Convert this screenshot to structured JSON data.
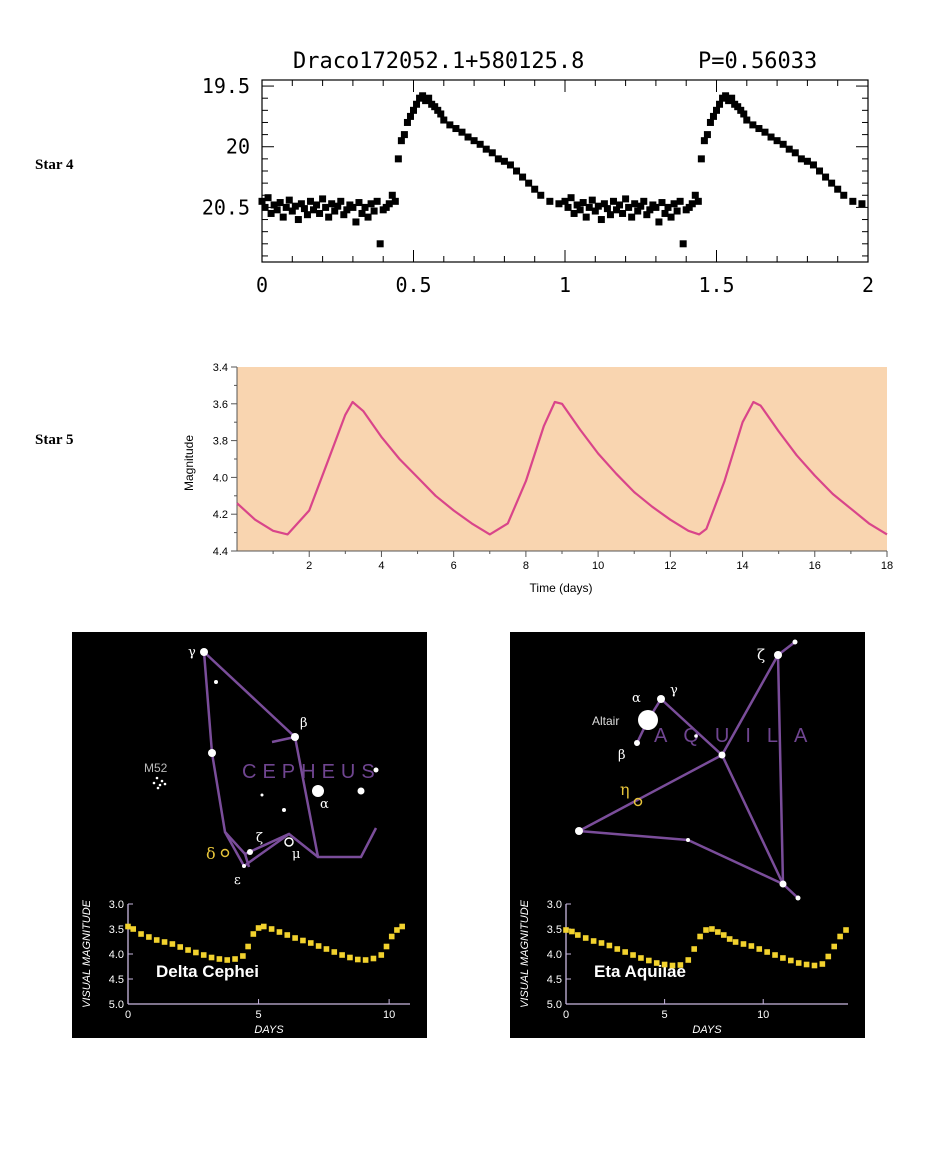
{
  "labels": {
    "star4": "Star 4",
    "star5": "Star 5"
  },
  "chart_data": [
    {
      "type": "scatter",
      "title": "Draco172052.1+580125.8",
      "period_label": "P=0.56033",
      "xlim": [
        0,
        2
      ],
      "ylim": [
        20.95,
        19.45
      ],
      "y_inverted": true,
      "xticks": [
        "0",
        "0.5",
        "1",
        "1.5",
        "2"
      ],
      "yticks": [
        "19.5",
        "20",
        "20.5"
      ],
      "marker_color": "#000000",
      "series": [
        {
          "x": [
            0.0,
            0.01,
            0.02,
            0.03,
            0.04,
            0.05,
            0.06,
            0.07,
            0.08,
            0.09,
            0.1,
            0.11,
            0.12,
            0.13,
            0.14,
            0.15,
            0.16,
            0.17,
            0.18,
            0.19,
            0.2,
            0.21,
            0.22,
            0.23,
            0.24,
            0.25,
            0.26,
            0.27,
            0.28,
            0.29,
            0.3,
            0.31,
            0.32,
            0.33,
            0.34,
            0.35,
            0.36,
            0.37,
            0.38,
            0.39,
            0.4,
            0.41,
            0.42,
            0.43,
            0.44,
            0.45,
            0.46,
            0.47,
            0.48,
            0.49,
            0.5,
            0.51,
            0.52,
            0.53,
            0.54,
            0.55,
            0.56,
            0.57,
            0.58,
            0.59,
            0.6,
            0.62,
            0.64,
            0.66,
            0.68,
            0.7,
            0.72,
            0.74,
            0.76,
            0.78,
            0.8,
            0.82,
            0.84,
            0.86,
            0.88,
            0.9,
            0.92,
            0.95,
            0.98,
            1.0,
            1.01,
            1.02,
            1.03,
            1.04,
            1.05,
            1.06,
            1.07,
            1.08,
            1.09,
            1.1,
            1.11,
            1.12,
            1.13,
            1.14,
            1.15,
            1.16,
            1.17,
            1.18,
            1.19,
            1.2,
            1.21,
            1.22,
            1.23,
            1.24,
            1.25,
            1.26,
            1.27,
            1.28,
            1.29,
            1.3,
            1.31,
            1.32,
            1.33,
            1.34,
            1.35,
            1.36,
            1.37,
            1.38,
            1.39,
            1.4,
            1.41,
            1.42,
            1.43,
            1.44,
            1.45,
            1.46,
            1.47,
            1.48,
            1.49,
            1.5,
            1.51,
            1.52,
            1.53,
            1.54,
            1.55,
            1.56,
            1.57,
            1.58,
            1.59,
            1.6,
            1.62,
            1.64,
            1.66,
            1.68,
            1.7,
            1.72,
            1.74,
            1.76,
            1.78,
            1.8,
            1.82,
            1.84,
            1.86,
            1.88,
            1.9,
            1.92,
            1.95,
            1.98
          ],
          "y": [
            20.45,
            20.5,
            20.42,
            20.55,
            20.48,
            20.52,
            20.46,
            20.58,
            20.5,
            20.44,
            20.53,
            20.49,
            20.6,
            20.47,
            20.51,
            20.56,
            20.45,
            20.52,
            20.48,
            20.55,
            20.43,
            20.5,
            20.58,
            20.47,
            20.53,
            20.49,
            20.45,
            20.56,
            20.52,
            20.48,
            20.5,
            20.62,
            20.46,
            20.55,
            20.5,
            20.58,
            20.47,
            20.53,
            20.45,
            20.8,
            20.52,
            20.5,
            20.47,
            20.4,
            20.45,
            20.1,
            19.95,
            19.9,
            19.8,
            19.75,
            19.7,
            19.65,
            19.6,
            19.58,
            19.62,
            19.6,
            19.65,
            19.67,
            19.7,
            19.73,
            19.78,
            19.82,
            19.85,
            19.88,
            19.92,
            19.95,
            19.98,
            20.02,
            20.05,
            20.1,
            20.12,
            20.15,
            20.2,
            20.25,
            20.3,
            20.35,
            20.4,
            20.45,
            20.47,
            20.45,
            20.5,
            20.42,
            20.55,
            20.48,
            20.52,
            20.46,
            20.58,
            20.5,
            20.44,
            20.53,
            20.49,
            20.6,
            20.47,
            20.51,
            20.56,
            20.45,
            20.52,
            20.48,
            20.55,
            20.43,
            20.5,
            20.58,
            20.47,
            20.53,
            20.49,
            20.45,
            20.56,
            20.52,
            20.48,
            20.5,
            20.62,
            20.46,
            20.55,
            20.5,
            20.58,
            20.47,
            20.53,
            20.45,
            20.8,
            20.52,
            20.5,
            20.47,
            20.4,
            20.45,
            20.1,
            19.95,
            19.9,
            19.8,
            19.75,
            19.7,
            19.65,
            19.6,
            19.58,
            19.62,
            19.6,
            19.65,
            19.67,
            19.7,
            19.73,
            19.78,
            19.82,
            19.85,
            19.88,
            19.92,
            19.95,
            19.98,
            20.02,
            20.05,
            20.1,
            20.12,
            20.15,
            20.2,
            20.25,
            20.3,
            20.35,
            20.4,
            20.45,
            20.47
          ]
        }
      ]
    },
    {
      "type": "line",
      "xlabel": "Time (days)",
      "ylabel": "Magnitude",
      "xlim": [
        0,
        18
      ],
      "ylim": [
        4.4,
        3.4
      ],
      "y_inverted": true,
      "xticks": [
        "2",
        "4",
        "6",
        "8",
        "10",
        "12",
        "14",
        "16",
        "18"
      ],
      "yticks": [
        "3.4",
        "3.6",
        "3.8",
        "4.0",
        "4.2",
        "4.4"
      ],
      "background_color": "#f9d5b0",
      "line_color": "#d9458a",
      "series": [
        {
          "x": [
            0.0,
            0.5,
            1.0,
            1.4,
            2.0,
            2.5,
            3.0,
            3.2,
            3.5,
            4.0,
            4.5,
            5.0,
            5.5,
            6.0,
            6.5,
            7.0,
            7.5,
            8.0,
            8.5,
            8.8,
            9.0,
            9.5,
            10.0,
            10.5,
            11.0,
            11.5,
            12.0,
            12.5,
            12.8,
            13.0,
            13.5,
            14.0,
            14.3,
            14.5,
            15.0,
            15.5,
            16.0,
            16.5,
            17.0,
            17.5,
            18.0
          ],
          "y": [
            4.14,
            4.23,
            4.29,
            4.31,
            4.18,
            3.92,
            3.66,
            3.59,
            3.64,
            3.78,
            3.9,
            4.0,
            4.1,
            4.18,
            4.25,
            4.31,
            4.25,
            4.02,
            3.72,
            3.59,
            3.6,
            3.74,
            3.87,
            3.98,
            4.08,
            4.16,
            4.23,
            4.29,
            4.31,
            4.28,
            4.02,
            3.7,
            3.59,
            3.61,
            3.75,
            3.88,
            3.99,
            4.09,
            4.17,
            4.25,
            4.31
          ]
        }
      ]
    },
    {
      "type": "scatter",
      "title": "Delta Cephei",
      "xlabel": "DAYS",
      "ylabel": "VISUAL MAGNITUDE",
      "xlim": [
        0,
        10.8
      ],
      "ylim": [
        5.0,
        3.0
      ],
      "y_inverted": true,
      "xticks": [
        "0",
        "5",
        "10"
      ],
      "yticks": [
        "3.0",
        "3.5",
        "4.0",
        "4.5",
        "5.0"
      ],
      "marker_color": "#f2d22e",
      "series": [
        {
          "x": [
            0.0,
            0.2,
            0.5,
            0.8,
            1.1,
            1.4,
            1.7,
            2.0,
            2.3,
            2.6,
            2.9,
            3.2,
            3.5,
            3.8,
            4.1,
            4.4,
            4.6,
            4.8,
            5.0,
            5.2,
            5.5,
            5.8,
            6.1,
            6.4,
            6.7,
            7.0,
            7.3,
            7.6,
            7.9,
            8.2,
            8.5,
            8.8,
            9.1,
            9.4,
            9.7,
            9.9,
            10.1,
            10.3,
            10.5
          ],
          "y": [
            3.45,
            3.5,
            3.6,
            3.66,
            3.72,
            3.76,
            3.8,
            3.86,
            3.92,
            3.97,
            4.02,
            4.07,
            4.1,
            4.12,
            4.1,
            4.04,
            3.85,
            3.6,
            3.48,
            3.45,
            3.5,
            3.56,
            3.62,
            3.68,
            3.73,
            3.78,
            3.84,
            3.9,
            3.96,
            4.02,
            4.07,
            4.11,
            4.12,
            4.09,
            4.02,
            3.85,
            3.65,
            3.52,
            3.45
          ]
        }
      ]
    },
    {
      "type": "scatter",
      "title": "Eta Aquilae",
      "xlabel": "DAYS",
      "ylabel": "VISUAL MAGNITUDE",
      "xlim": [
        0,
        14.3
      ],
      "ylim": [
        5.0,
        3.0
      ],
      "y_inverted": true,
      "xticks": [
        "0",
        "5",
        "10"
      ],
      "yticks": [
        "3.0",
        "3.5",
        "4.0",
        "4.5",
        "5.0"
      ],
      "marker_color": "#f2d22e",
      "series": [
        {
          "x": [
            0.0,
            0.3,
            0.6,
            1.0,
            1.4,
            1.8,
            2.2,
            2.6,
            3.0,
            3.4,
            3.8,
            4.2,
            4.6,
            5.0,
            5.4,
            5.8,
            6.2,
            6.5,
            6.8,
            7.1,
            7.4,
            7.7,
            8.0,
            8.3,
            8.6,
            9.0,
            9.4,
            9.8,
            10.2,
            10.6,
            11.0,
            11.4,
            11.8,
            12.2,
            12.6,
            13.0,
            13.3,
            13.6,
            13.9,
            14.2
          ],
          "y": [
            3.52,
            3.55,
            3.62,
            3.68,
            3.74,
            3.78,
            3.83,
            3.9,
            3.96,
            4.02,
            4.08,
            4.13,
            4.18,
            4.21,
            4.23,
            4.22,
            4.12,
            3.9,
            3.65,
            3.52,
            3.5,
            3.56,
            3.62,
            3.7,
            3.76,
            3.8,
            3.84,
            3.9,
            3.96,
            4.02,
            4.08,
            4.13,
            4.18,
            4.21,
            4.23,
            4.2,
            4.05,
            3.85,
            3.65,
            3.52
          ]
        }
      ]
    }
  ],
  "cepheus_map": {
    "bg_color": "#000000",
    "line_color": "#7a4d9a",
    "label_color": "#6f4590",
    "highlight_color": "#e6c43a",
    "constellation_label": "CEPHEUS",
    "labels": {
      "gamma": "γ",
      "beta": "β",
      "alpha": "α",
      "zeta": "ζ",
      "mu": "μ",
      "epsilon": "ε",
      "delta": "δ",
      "m52": "M52"
    }
  },
  "aquila_map": {
    "bg_color": "#000000",
    "line_color": "#7a4d9a",
    "label_color": "#6f4590",
    "highlight_color": "#e6c43a",
    "constellation_label": "AQUILA",
    "labels": {
      "zeta": "ζ",
      "alpha": "α",
      "gamma": "γ",
      "altair": "Altair",
      "beta": "β",
      "eta": "η"
    }
  }
}
